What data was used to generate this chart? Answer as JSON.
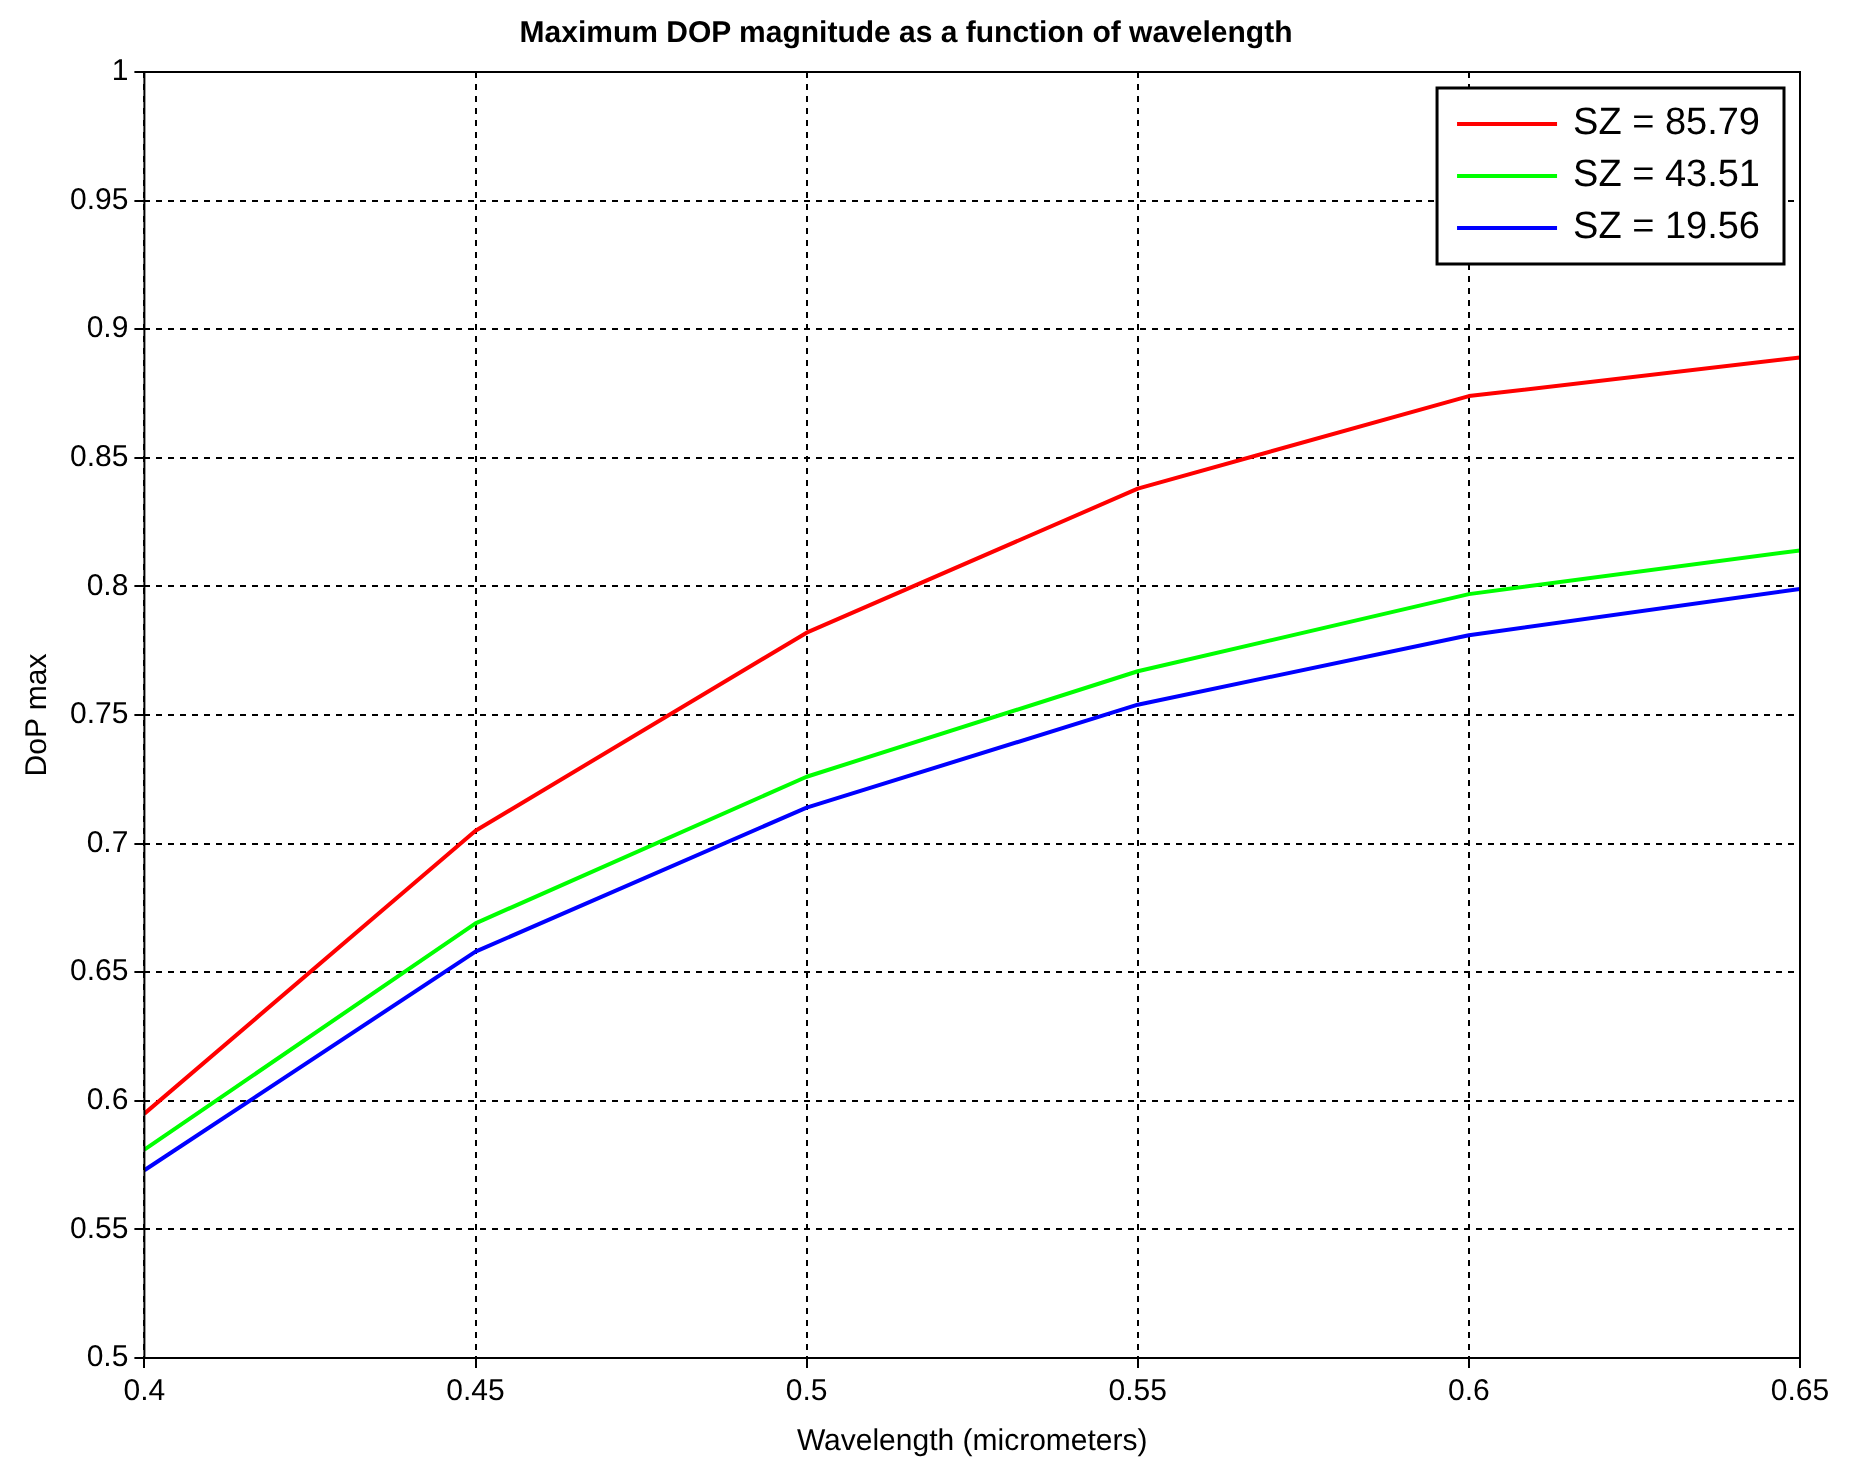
{
  "chart_data": {
    "type": "line",
    "title": "Maximum DOP magnitude as a function of wavelength",
    "xlabel": "Wavelength (micrometers)",
    "ylabel": "DoP max",
    "x": [
      0.4,
      0.45,
      0.5,
      0.55,
      0.6,
      0.65
    ],
    "series": [
      {
        "name": "SZ = 85.79",
        "color": "#ff0000",
        "values": [
          0.595,
          0.705,
          0.782,
          0.838,
          0.874,
          0.889
        ]
      },
      {
        "name": "SZ = 43.51",
        "color": "#00ff00",
        "values": [
          0.581,
          0.669,
          0.726,
          0.767,
          0.797,
          0.814
        ]
      },
      {
        "name": "SZ = 19.56",
        "color": "#0000ff",
        "values": [
          0.573,
          0.658,
          0.714,
          0.754,
          0.781,
          0.799
        ]
      }
    ],
    "xlim": [
      0.4,
      0.65
    ],
    "xticks": [
      0.4,
      0.45,
      0.5,
      0.55,
      0.6,
      0.65
    ],
    "ylim": [
      0.5,
      1
    ],
    "yticks": [
      0.5,
      0.55,
      0.6,
      0.65,
      0.7,
      0.75,
      0.8,
      0.85,
      0.9,
      0.95,
      1
    ],
    "grid": true,
    "legend": "top right",
    "marker": "none",
    "line_style": "solid"
  }
}
